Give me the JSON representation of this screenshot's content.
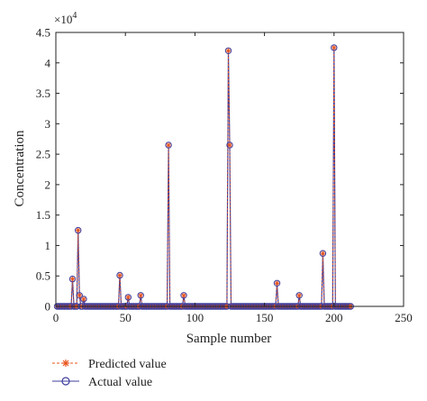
{
  "chart_data": {
    "type": "scatter",
    "title": "",
    "xlabel": "Sample number",
    "ylabel": "Concentration",
    "y_multiplier_label": "×10",
    "y_multiplier_exponent": "4",
    "xlim": [
      0,
      250
    ],
    "ylim": [
      0,
      45000
    ],
    "x_ticks": [
      0,
      50,
      100,
      150,
      200,
      250
    ],
    "y_ticks": [
      0,
      5000,
      10000,
      15000,
      20000,
      25000,
      30000,
      35000,
      40000,
      45000
    ],
    "y_tick_labels": [
      "0",
      "0.5",
      "1",
      "1.5",
      "2",
      "2.5",
      "3",
      "3.5",
      "4",
      "4.5"
    ],
    "x_tick_labels": [
      "0",
      "50",
      "100",
      "150",
      "200",
      "250"
    ],
    "grid": false,
    "legend_position": "bottom-left",
    "n_samples": 212,
    "baseline_value": 0,
    "peaks": [
      {
        "x": 12,
        "y": 4500
      },
      {
        "x": 16,
        "y": 12500
      },
      {
        "x": 17,
        "y": 1800
      },
      {
        "x": 20,
        "y": 1200
      },
      {
        "x": 46,
        "y": 5100
      },
      {
        "x": 52,
        "y": 1500
      },
      {
        "x": 61,
        "y": 1800
      },
      {
        "x": 81,
        "y": 26500
      },
      {
        "x": 92,
        "y": 1800
      },
      {
        "x": 124,
        "y": 42000
      },
      {
        "x": 125,
        "y": 26500
      },
      {
        "x": 159,
        "y": 3800
      },
      {
        "x": 175,
        "y": 1800
      },
      {
        "x": 192,
        "y": 8700
      },
      {
        "x": 200,
        "y": 42500
      }
    ],
    "series": [
      {
        "name": "Predicted value",
        "color": "#e8541e",
        "marker": "asterisk",
        "line_style": "dashed"
      },
      {
        "name": "Actual value",
        "color": "#3d3d9e",
        "marker": "circle",
        "line_style": "solid"
      }
    ]
  }
}
